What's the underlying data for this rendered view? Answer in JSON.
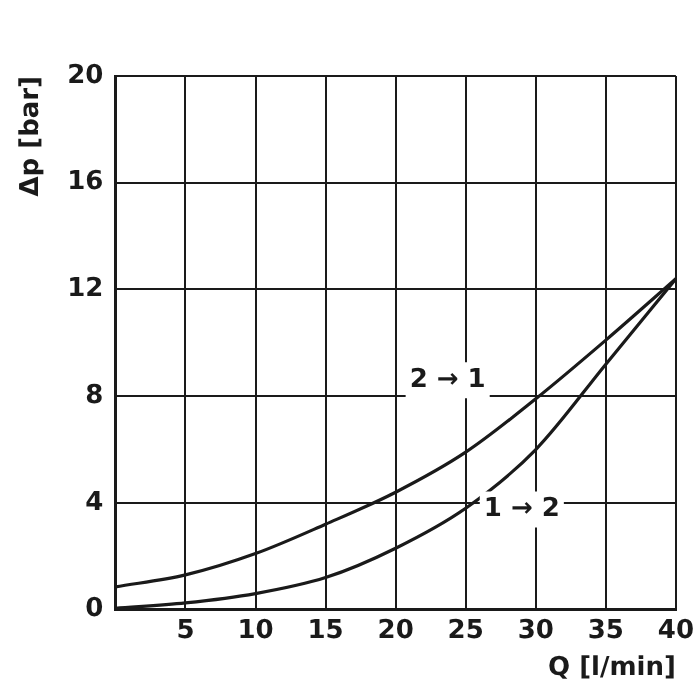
{
  "chart_data": {
    "type": "line",
    "xlabel": "Q [l/min]",
    "ylabel": "Δp [bar]",
    "x": [
      0,
      5,
      10,
      15,
      20,
      25,
      30,
      35,
      40
    ],
    "series": [
      {
        "name": "2 → 1",
        "color": "#1a1a1a",
        "values": [
          0.85,
          1.3,
          2.1,
          3.2,
          4.4,
          5.9,
          7.9,
          10.1,
          12.4
        ]
      },
      {
        "name": "1 → 2",
        "color": "#1a1a1a",
        "values": [
          0.05,
          0.25,
          0.6,
          1.2,
          2.3,
          3.8,
          6.0,
          9.2,
          12.4
        ]
      }
    ],
    "xlim": [
      0,
      40
    ],
    "xticks": [
      {
        "value": 0,
        "label": null
      },
      5,
      10,
      15,
      20,
      25,
      30,
      35,
      40
    ],
    "ylim": [
      0,
      20
    ],
    "yticks": [
      0,
      4,
      8,
      12,
      16,
      20
    ],
    "grid": true,
    "legend": false,
    "marker": "none",
    "line_style": "solid"
  }
}
